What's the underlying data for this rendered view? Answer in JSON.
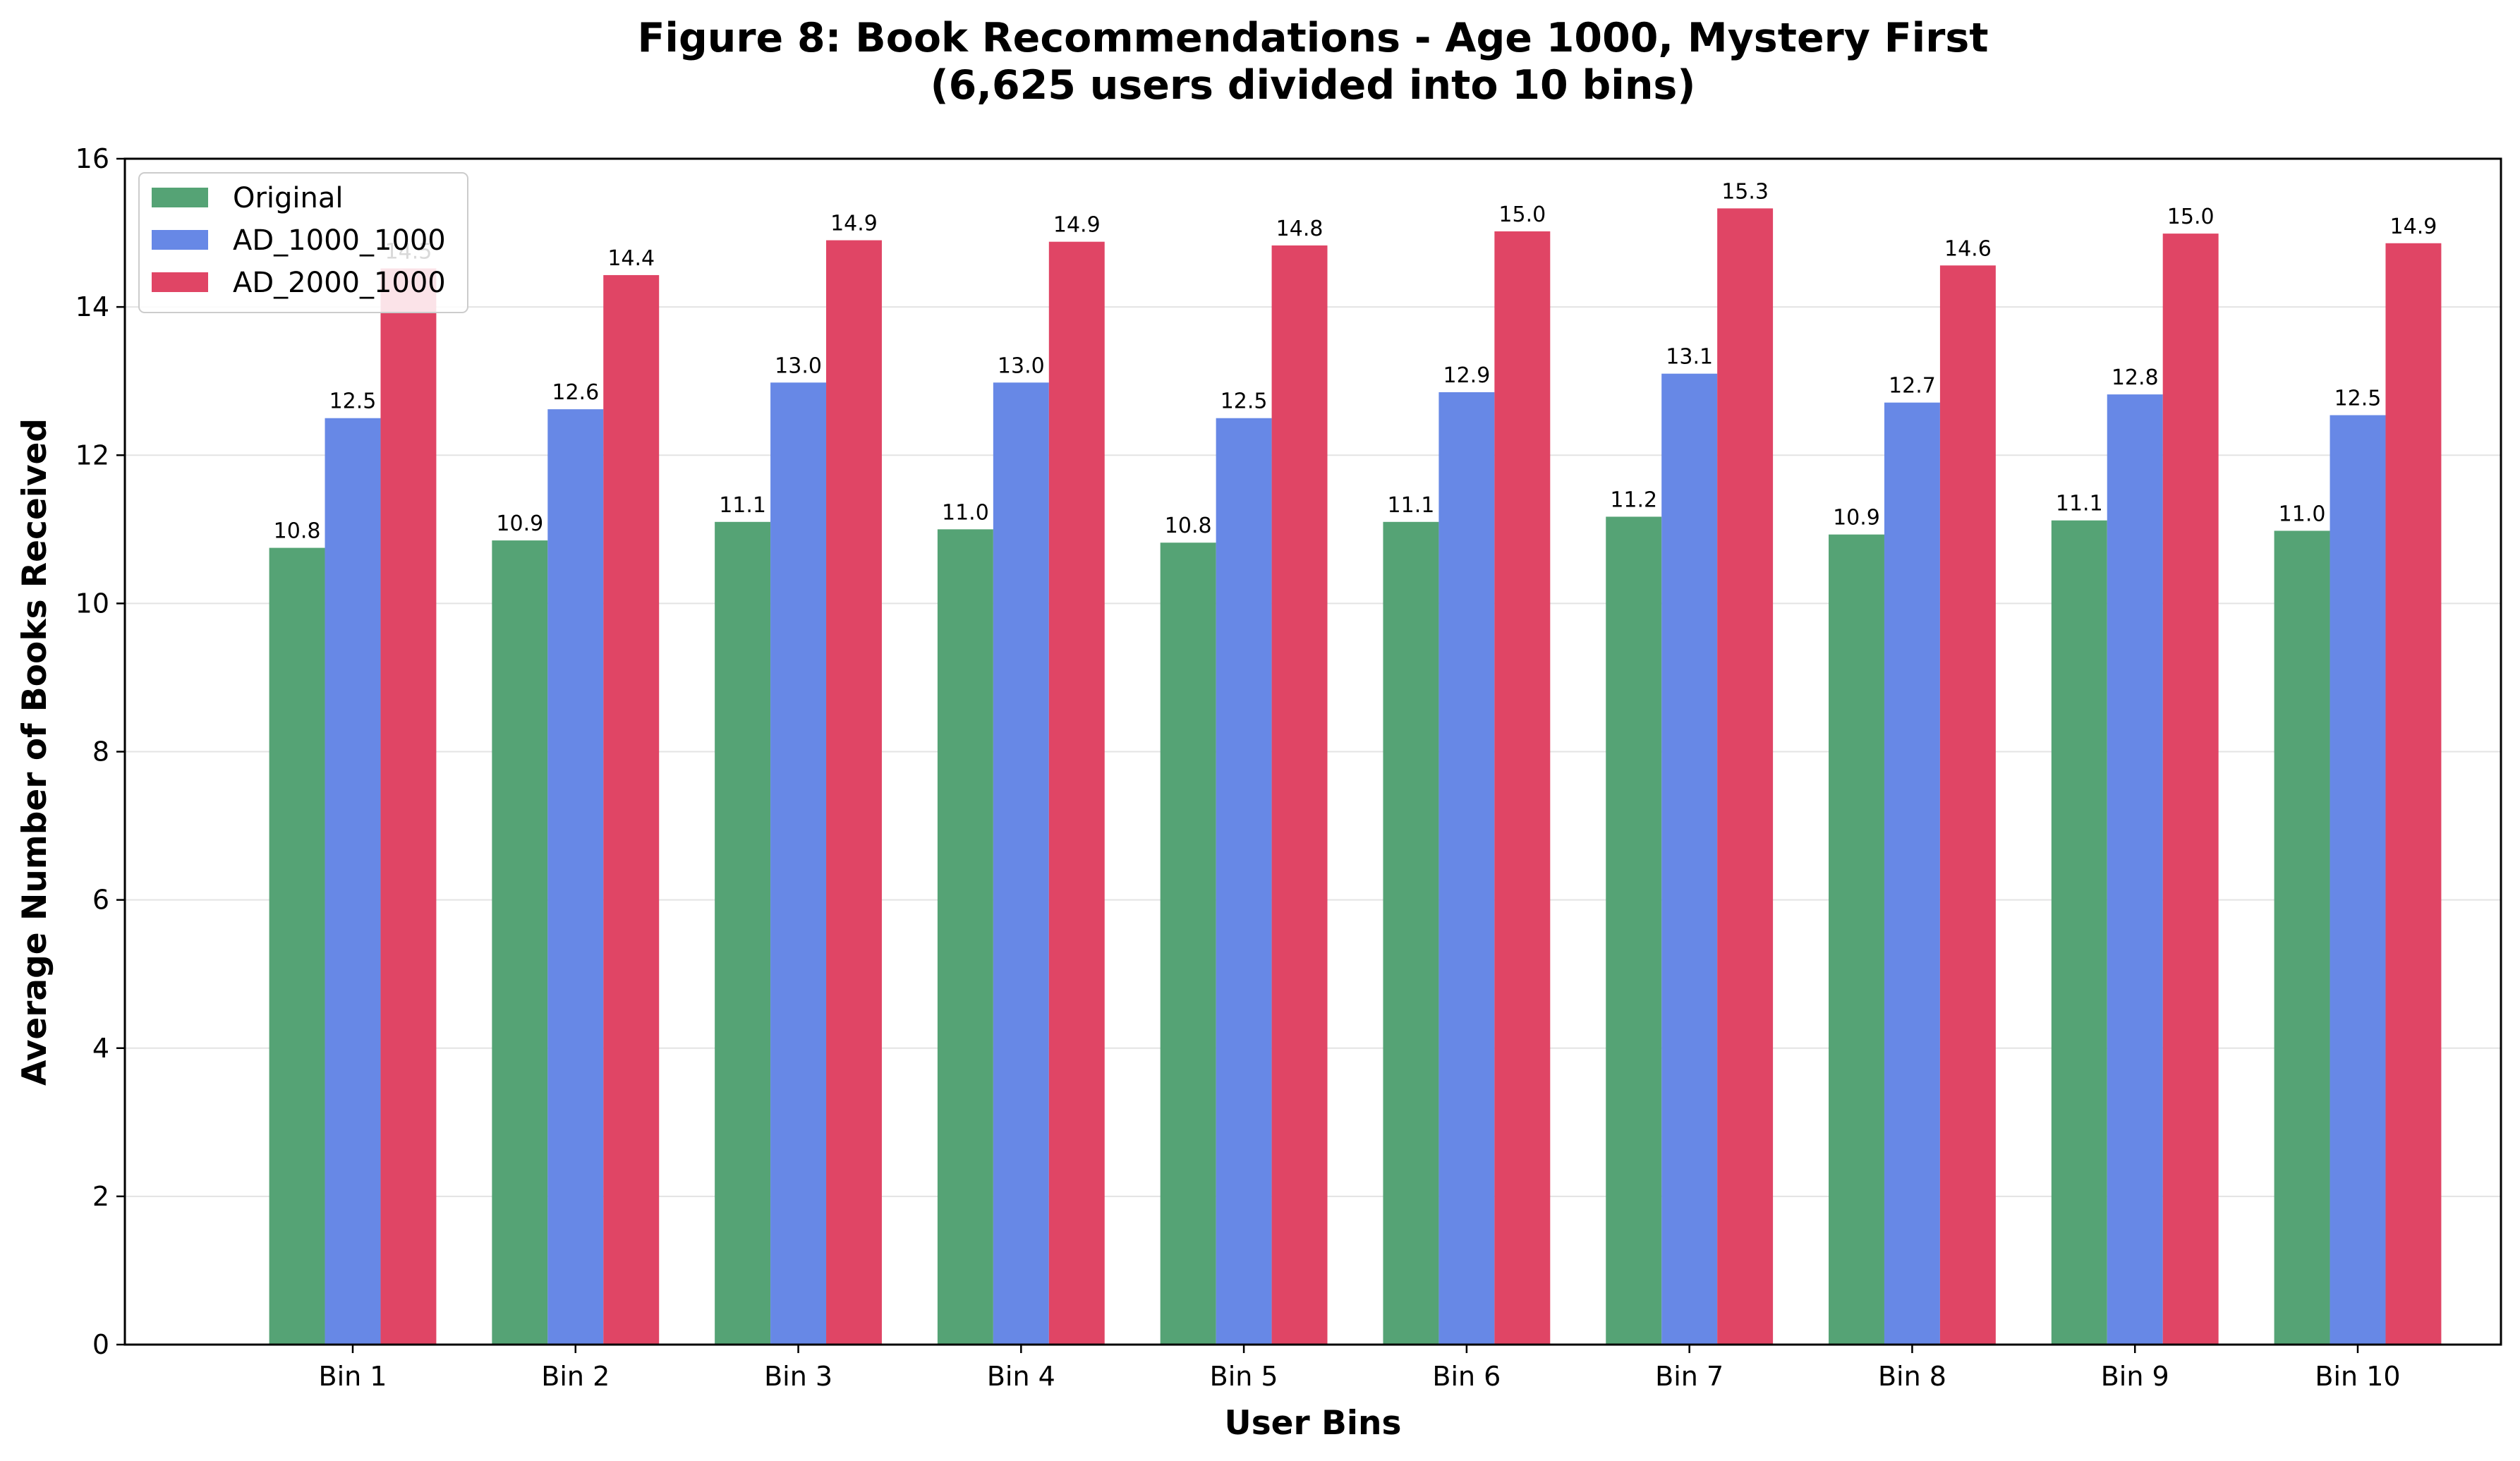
{
  "chart_data": {
    "type": "bar",
    "title": "Figure 8: Book Recommendations - Age 1000, Mystery First",
    "subtitle": "(6,625 users divided into 10 bins)",
    "xlabel": "User Bins",
    "ylabel": "Average Number of Books Received",
    "categories": [
      "Bin 1",
      "Bin 2",
      "Bin 3",
      "Bin 4",
      "Bin 5",
      "Bin 6",
      "Bin 7",
      "Bin 8",
      "Bin 9",
      "Bin 10"
    ],
    "series": [
      {
        "name": "Original",
        "color": "#55a375",
        "values": [
          10.75,
          10.85,
          11.1,
          11.0,
          10.82,
          11.1,
          11.17,
          10.93,
          11.12,
          10.98
        ],
        "labels": [
          "10.8",
          "10.9",
          "11.1",
          "11.0",
          "10.8",
          "11.1",
          "11.2",
          "10.9",
          "11.1",
          "11.0"
        ]
      },
      {
        "name": "AD_1000_1000",
        "color": "#6788e6",
        "values": [
          12.5,
          12.62,
          12.98,
          12.98,
          12.5,
          12.85,
          13.1,
          12.71,
          12.82,
          12.54
        ],
        "labels": [
          "12.5",
          "12.6",
          "13.0",
          "13.0",
          "12.5",
          "12.9",
          "13.1",
          "12.7",
          "12.8",
          "12.5"
        ]
      },
      {
        "name": "AD_2000_1000",
        "color": "#e04565",
        "values": [
          14.52,
          14.43,
          14.9,
          14.88,
          14.83,
          15.02,
          15.33,
          14.56,
          14.99,
          14.86
        ],
        "labels": [
          "14.5",
          "14.4",
          "14.9",
          "14.9",
          "14.8",
          "15.0",
          "15.3",
          "14.6",
          "15.0",
          "14.9"
        ]
      }
    ],
    "ylim": [
      0,
      16
    ],
    "yticks": [
      "0",
      "2",
      "4",
      "6",
      "8",
      "10",
      "12",
      "14",
      "16"
    ],
    "grid": "horizontal",
    "legend_position": "top-left"
  }
}
